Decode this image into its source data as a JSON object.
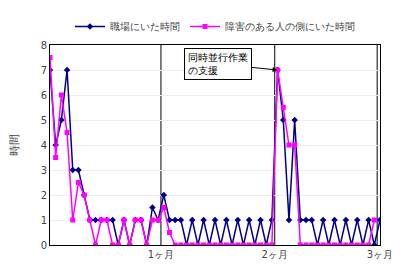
{
  "chart_data": {
    "type": "line",
    "ylabel": "時間",
    "x": [
      0,
      1,
      2,
      3,
      4,
      5,
      6,
      7,
      8,
      9,
      10,
      11,
      12,
      13,
      14,
      15,
      16,
      17,
      18,
      19,
      20,
      21,
      22,
      23,
      24,
      25,
      26,
      27,
      28,
      29,
      30,
      31,
      32,
      33,
      34,
      35,
      36,
      37,
      38,
      39,
      40,
      41,
      42,
      43,
      44,
      45,
      46,
      47,
      48,
      49,
      50,
      51,
      52,
      53,
      54,
      55,
      56,
      57,
      58
    ],
    "series": [
      {
        "name": "職場にいた時間",
        "color": "#00008B",
        "marker": "diamond",
        "values": [
          7,
          4,
          5,
          7,
          3,
          3,
          2,
          1,
          1,
          1,
          1,
          1,
          0,
          1,
          0,
          1,
          1,
          0,
          1.5,
          1,
          2,
          1,
          1,
          1,
          0,
          1,
          0,
          1,
          0,
          1,
          0,
          1,
          0,
          1,
          0,
          1,
          0,
          1,
          0,
          1,
          7,
          5,
          1,
          5,
          1,
          1,
          1,
          0,
          1,
          0,
          1,
          0,
          1,
          0,
          1,
          0,
          1,
          0,
          1
        ]
      },
      {
        "name": "障害のある人の側にいた時間",
        "color": "#FF00FF",
        "marker": "square",
        "values": [
          7.5,
          3.5,
          6,
          4.5,
          1,
          2.5,
          2,
          1,
          0,
          1,
          1,
          0,
          0,
          1,
          0,
          1,
          1,
          0,
          1,
          1,
          1.5,
          0.5,
          0,
          0,
          0,
          0,
          0,
          0,
          0,
          0,
          0,
          0,
          0,
          0,
          0,
          0,
          0,
          0,
          0,
          0,
          7,
          5.5,
          4,
          4,
          0,
          0,
          0,
          0,
          0,
          0,
          0,
          0,
          0,
          0,
          0,
          0,
          0,
          1,
          null
        ]
      }
    ],
    "xlim": [
      0,
      58
    ],
    "xticks": [
      {
        "value": 19.5,
        "label": "1ヶ月"
      },
      {
        "value": 39.5,
        "label": "2ヶ月"
      },
      {
        "value": 58,
        "label": "3ヶ月"
      }
    ],
    "ylim": [
      0,
      8
    ],
    "yticks": [
      0,
      1,
      2,
      3,
      4,
      5,
      6,
      7,
      8
    ],
    "vlines": [
      19.5,
      39.5,
      57.5
    ],
    "annotations": [
      {
        "text": "同時並行作業\nの支援",
        "x": 40,
        "y": 7
      }
    ],
    "grid": true,
    "legend": "top"
  }
}
